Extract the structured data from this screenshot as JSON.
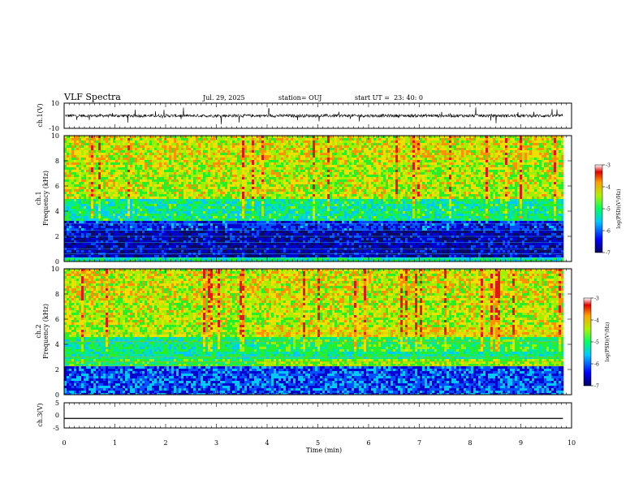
{
  "header": {
    "title": "VLF Spectra",
    "date": "Jul. 29, 2025",
    "station": "station= OUJ",
    "start": "start UT =  23: 40: 0"
  },
  "colors": {
    "spectrum": [
      "#0a0a60",
      "#0000d0",
      "#0050ff",
      "#00c8ff",
      "#00e8a0",
      "#28f028",
      "#a0f000",
      "#f0e000",
      "#ff9000",
      "#e01818"
    ],
    "trace": "#000000"
  },
  "chart_data": [
    {
      "type": "line",
      "name": "ch1-waveform",
      "ylabel": "ch.1(V)",
      "ylim": [
        -10,
        10
      ],
      "yticks": [
        "10",
        "-10"
      ],
      "baseline": 0
    },
    {
      "type": "heatmap",
      "name": "ch1-spectrogram",
      "ylabel_channel": "ch.1",
      "ylabel": "Frequency (kHz)",
      "ylim": [
        0,
        10
      ],
      "yticks": [
        "10",
        "8",
        "6",
        "4",
        "2",
        "0"
      ],
      "low_power_band_khz": [
        0.5,
        3.2
      ],
      "colorbar": {
        "label": "log(PSD)(V²/Hz)",
        "range": [
          -7,
          -3
        ],
        "ticks": [
          "-3",
          "-4",
          "-5",
          "-6",
          "-7"
        ]
      }
    },
    {
      "type": "heatmap",
      "name": "ch2-spectrogram",
      "ylabel_channel": "ch.2",
      "ylabel": "Frequency (kHz)",
      "ylim": [
        0,
        10
      ],
      "yticks": [
        "10",
        "8",
        "6",
        "4",
        "2",
        "0"
      ],
      "band_shift_time_min": 3.7,
      "colorbar": {
        "label": "log(PSD)(V²/Hz)",
        "range": [
          -7,
          -3
        ],
        "ticks": [
          "-3",
          "-4",
          "-5",
          "-6",
          "-7"
        ]
      }
    },
    {
      "type": "line",
      "name": "ch3-waveform",
      "ylabel": "ch.3(V)",
      "ylim": [
        -5,
        5
      ],
      "yticks": [
        "5",
        "0",
        "-5"
      ],
      "constant_value": -1.2
    }
  ],
  "xaxis": {
    "label": "Time (min)",
    "range": [
      0,
      10
    ],
    "ticks": [
      "0",
      "1",
      "2",
      "3",
      "4",
      "5",
      "6",
      "7",
      "8",
      "9",
      "10"
    ],
    "data_end": 9.83
  }
}
